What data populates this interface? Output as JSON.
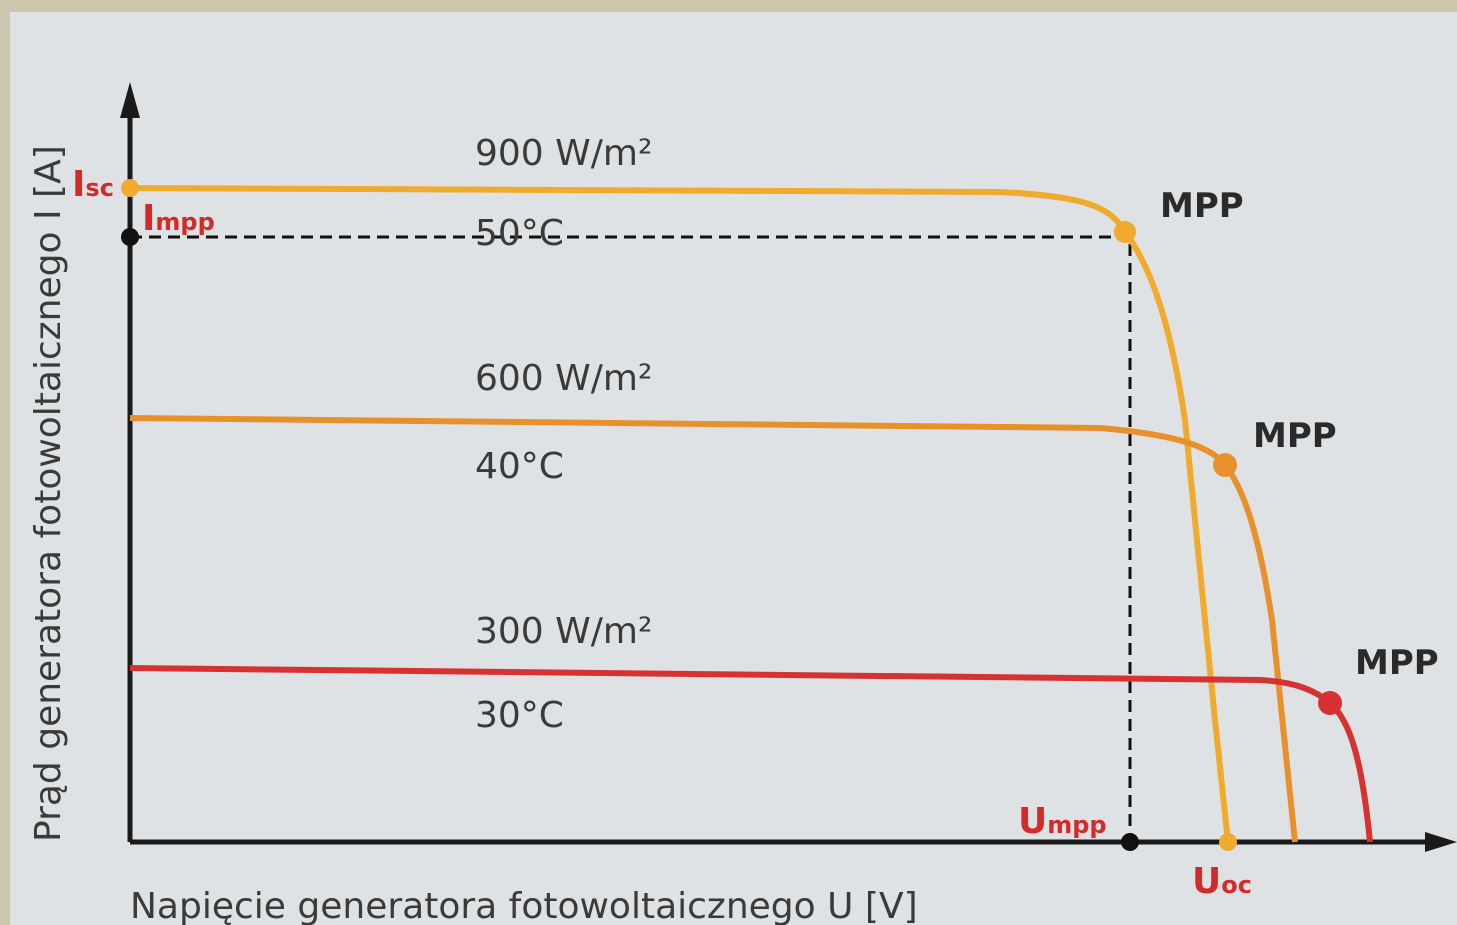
{
  "axes": {
    "y_label": "Prąd generatora fotowoltaicznego I [A]",
    "x_label": "Napięcie generatora fotowoltaicznego U [V]"
  },
  "curves": [
    {
      "irradiance": "900 W/m²",
      "temperature": "50°C",
      "point": "MPP"
    },
    {
      "irradiance": "600 W/m²",
      "temperature": "40°C",
      "point": "MPP"
    },
    {
      "irradiance": "300 W/m²",
      "temperature": "30°C",
      "point": "MPP"
    }
  ],
  "markers": {
    "isc": {
      "main": "I",
      "sub": "sc"
    },
    "impp": {
      "main": "I",
      "sub": "mpp"
    },
    "umpp": {
      "main": "U",
      "sub": "mpp"
    },
    "uoc": {
      "main": "U",
      "sub": "oc"
    }
  }
}
